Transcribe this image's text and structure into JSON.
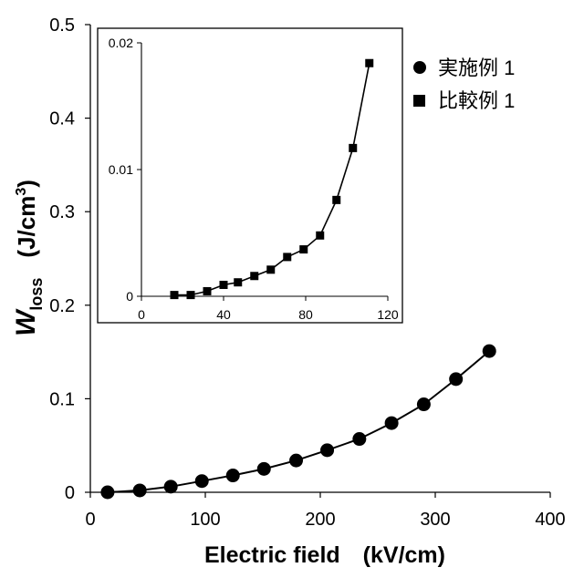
{
  "chart_data": [
    {
      "type": "scatter",
      "role": "main",
      "xlabel": "Electric field　(kV/cm)",
      "ylabel_main": "W",
      "ylabel_sub": "loss",
      "ylabel_unit": "(J/cm",
      "ylabel_unit_sup": "3",
      "ylabel_unit_close": ")",
      "xlim": [
        0,
        400
      ],
      "ylim": [
        0,
        0.5
      ],
      "xticks": [
        "0",
        "100",
        "200",
        "300",
        "400"
      ],
      "yticks": [
        "0",
        "0.1",
        "0.2",
        "0.3",
        "0.4",
        "0.5"
      ],
      "grid": false,
      "legend_position": "top-right",
      "series": [
        {
          "name": "実施例 1",
          "marker": "circle",
          "color": "#000000",
          "x": [
            15,
            43,
            70,
            97,
            124,
            151,
            179,
            206,
            234,
            262,
            290,
            318,
            347
          ],
          "y": [
            0.0,
            0.002,
            0.006,
            0.012,
            0.018,
            0.025,
            0.034,
            0.045,
            0.057,
            0.074,
            0.094,
            0.121,
            0.151
          ]
        }
      ]
    },
    {
      "type": "scatter",
      "role": "inset",
      "xlim": [
        0,
        120
      ],
      "ylim": [
        0,
        0.02
      ],
      "xticks": [
        "0",
        "40",
        "80",
        "120"
      ],
      "yticks": [
        "0",
        "0.01",
        "0.02"
      ],
      "grid": false,
      "series": [
        {
          "name": "比較例 1",
          "marker": "square",
          "color": "#000000",
          "x": [
            16,
            24,
            32,
            40,
            47,
            55,
            63,
            71,
            79,
            87,
            95,
            103,
            111
          ],
          "y": [
            0.0001,
            0.0001,
            0.0004,
            0.0009,
            0.0011,
            0.0016,
            0.0021,
            0.0031,
            0.0037,
            0.0048,
            0.0076,
            0.0117,
            0.0184
          ]
        }
      ]
    }
  ]
}
